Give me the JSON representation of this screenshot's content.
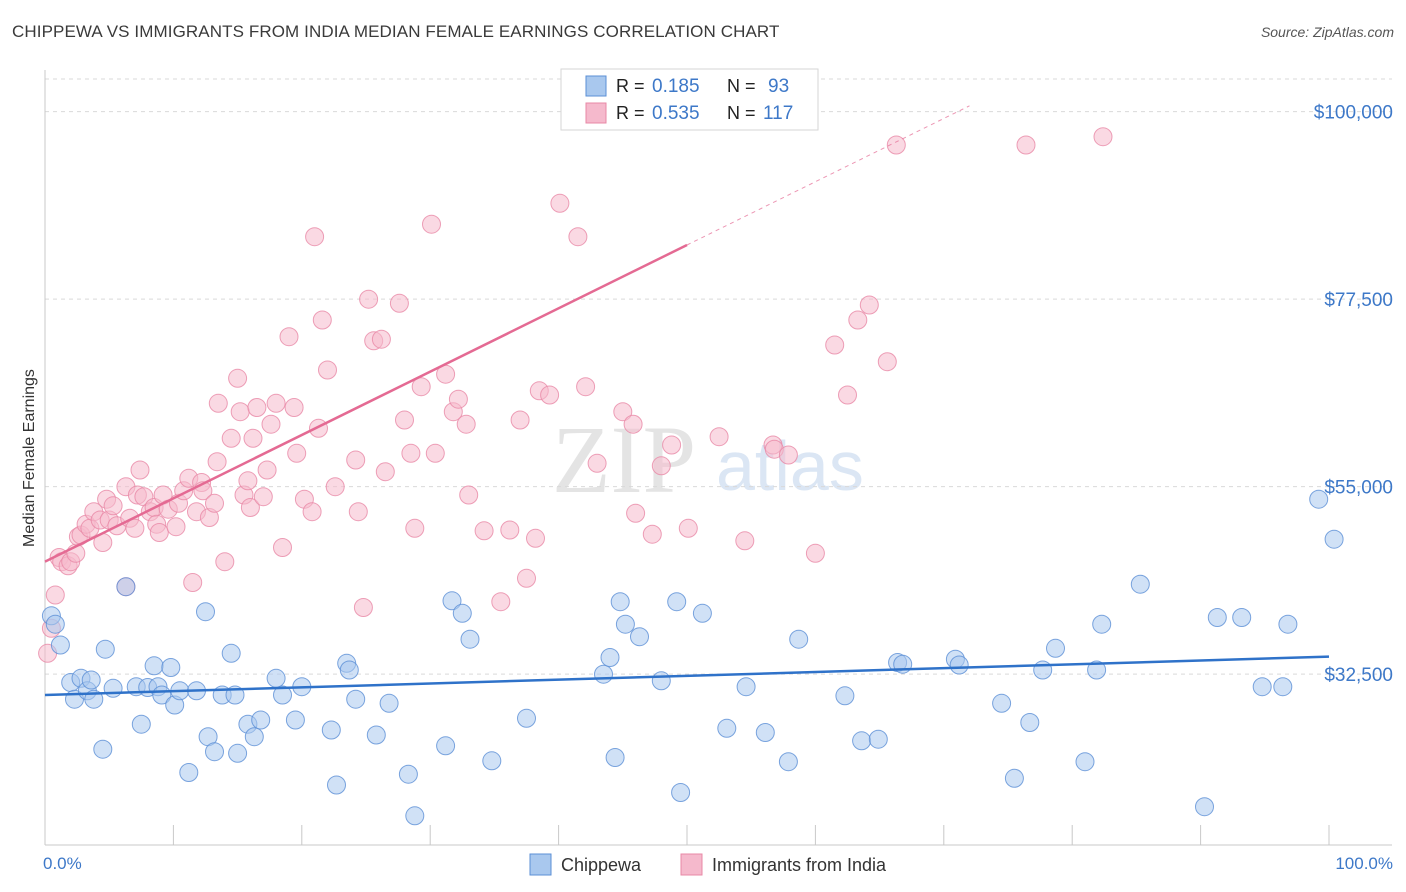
{
  "header": {
    "title": "CHIPPEWA VS IMMIGRANTS FROM INDIA MEDIAN FEMALE EARNINGS CORRELATION CHART",
    "source": "Source: ZipAtlas.com"
  },
  "watermark": {
    "zip": "ZIP",
    "atlas": "atlas"
  },
  "colors": {
    "blue_fill": "#a9c8ee",
    "blue_stroke": "#5b8fd6",
    "blue_line": "#2f72c9",
    "pink_fill": "#f5b9cc",
    "pink_stroke": "#e888a6",
    "pink_line": "#e46a93",
    "axis_label": "#3d78c8",
    "grid": "#d9d9d9"
  },
  "chart_data": {
    "type": "scatter",
    "title": "CHIPPEWA VS IMMIGRANTS FROM INDIA MEDIAN FEMALE EARNINGS CORRELATION CHART",
    "xlabel": "",
    "ylabel": "Median Female Earnings",
    "xlim": [
      0,
      100
    ],
    "ylim": [
      12000,
      105000
    ],
    "x_tick_labels": [
      "0.0%",
      "100.0%"
    ],
    "y_ticks": [
      {
        "value": 32500,
        "label": "$32,500"
      },
      {
        "value": 55000,
        "label": "$55,000"
      },
      {
        "value": 77500,
        "label": "$77,500"
      },
      {
        "value": 100000,
        "label": "$100,000"
      }
    ],
    "legend": [
      {
        "name": "Chippewa",
        "r_label": "R =",
        "r": "0.185",
        "n_label": "N =",
        "n": "93"
      },
      {
        "name": "Immigrants from India",
        "r_label": "R =",
        "r": "0.535",
        "n_label": "N =",
        "n": "117"
      }
    ],
    "series": [
      {
        "name": "Chippewa",
        "trend": {
          "x0": 0,
          "y0": 30000,
          "x1": 100,
          "y1": 34600
        },
        "points": [
          [
            0.5,
            39500
          ],
          [
            0.8,
            38500
          ],
          [
            1.2,
            36000
          ],
          [
            2,
            31500
          ],
          [
            2.3,
            29500
          ],
          [
            2.8,
            32000
          ],
          [
            3.3,
            30500
          ],
          [
            3.6,
            31800
          ],
          [
            3.8,
            29500
          ],
          [
            4.5,
            23500
          ],
          [
            4.7,
            35500
          ],
          [
            5.3,
            30800
          ],
          [
            6.3,
            43000
          ],
          [
            7.1,
            31000
          ],
          [
            7.5,
            26500
          ],
          [
            8,
            30900
          ],
          [
            8.5,
            33500
          ],
          [
            8.8,
            31000
          ],
          [
            9.1,
            30000
          ],
          [
            9.8,
            33300
          ],
          [
            10.1,
            28800
          ],
          [
            10.5,
            30500
          ],
          [
            11.2,
            20700
          ],
          [
            11.8,
            30500
          ],
          [
            12.5,
            40000
          ],
          [
            12.7,
            25000
          ],
          [
            13.2,
            23200
          ],
          [
            13.8,
            30000
          ],
          [
            14.5,
            35000
          ],
          [
            14.8,
            30000
          ],
          [
            15,
            23000
          ],
          [
            15.8,
            26500
          ],
          [
            16.3,
            25000
          ],
          [
            16.8,
            27000
          ],
          [
            18,
            32000
          ],
          [
            18.5,
            30000
          ],
          [
            19.5,
            27000
          ],
          [
            20,
            31000
          ],
          [
            22.3,
            25800
          ],
          [
            22.7,
            19200
          ],
          [
            23.5,
            33800
          ],
          [
            23.7,
            33000
          ],
          [
            24.2,
            29500
          ],
          [
            25.8,
            25200
          ],
          [
            26.8,
            29000
          ],
          [
            28.3,
            20500
          ],
          [
            28.8,
            15500
          ],
          [
            31.2,
            23900
          ],
          [
            31.7,
            41300
          ],
          [
            32.5,
            39800
          ],
          [
            33.1,
            36700
          ],
          [
            34.8,
            22100
          ],
          [
            37.5,
            27200
          ],
          [
            43.5,
            32500
          ],
          [
            44,
            34500
          ],
          [
            44.4,
            22500
          ],
          [
            44.8,
            41200
          ],
          [
            45.2,
            38500
          ],
          [
            46.3,
            37000
          ],
          [
            48,
            31700
          ],
          [
            49.2,
            41200
          ],
          [
            49.5,
            18300
          ],
          [
            51.2,
            39800
          ],
          [
            53.1,
            26000
          ],
          [
            54.6,
            31000
          ],
          [
            56.1,
            25500
          ],
          [
            57.9,
            22000
          ],
          [
            58.7,
            36700
          ],
          [
            62.3,
            29900
          ],
          [
            63.6,
            24500
          ],
          [
            64.9,
            24700
          ],
          [
            66.4,
            33900
          ],
          [
            66.8,
            33700
          ],
          [
            70.9,
            34300
          ],
          [
            71.2,
            33600
          ],
          [
            74.5,
            29000
          ],
          [
            75.5,
            20000
          ],
          [
            76.7,
            26700
          ],
          [
            77.7,
            33000
          ],
          [
            78.7,
            35600
          ],
          [
            81,
            22000
          ],
          [
            81.9,
            33000
          ],
          [
            82.3,
            38500
          ],
          [
            85.3,
            43300
          ],
          [
            90.3,
            16600
          ],
          [
            91.3,
            39300
          ],
          [
            93.2,
            39300
          ],
          [
            94.8,
            31000
          ],
          [
            96.4,
            31000
          ],
          [
            96.8,
            38500
          ],
          [
            99.2,
            53500
          ],
          [
            100.4,
            48700
          ]
        ]
      },
      {
        "name": "Immigrants from India",
        "trend": {
          "x0": 0,
          "y0": 46000,
          "x1": 50,
          "y1": 84000,
          "x_dash_end": 72,
          "y_dash_end": 100700
        },
        "points": [
          [
            0.2,
            35000
          ],
          [
            0.5,
            38000
          ],
          [
            0.8,
            42000
          ],
          [
            1.1,
            46500
          ],
          [
            1.3,
            46000
          ],
          [
            1.8,
            45500
          ],
          [
            2,
            46000
          ],
          [
            2.4,
            47000
          ],
          [
            2.6,
            49000
          ],
          [
            2.8,
            49200
          ],
          [
            3.2,
            50500
          ],
          [
            3.5,
            50000
          ],
          [
            3.8,
            52000
          ],
          [
            4.3,
            51000
          ],
          [
            4.5,
            48300
          ],
          [
            4.8,
            53500
          ],
          [
            5,
            51000
          ],
          [
            5.3,
            52700
          ],
          [
            5.6,
            50300
          ],
          [
            6.3,
            43000
          ],
          [
            6.3,
            55000
          ],
          [
            6.6,
            51200
          ],
          [
            7,
            50000
          ],
          [
            7.2,
            54000
          ],
          [
            7.4,
            57000
          ],
          [
            7.7,
            53800
          ],
          [
            8.2,
            52000
          ],
          [
            8.5,
            52500
          ],
          [
            8.7,
            50500
          ],
          [
            8.9,
            49500
          ],
          [
            9.2,
            54000
          ],
          [
            9.6,
            52300
          ],
          [
            10.2,
            50200
          ],
          [
            10.4,
            53000
          ],
          [
            10.8,
            54500
          ],
          [
            11.2,
            56000
          ],
          [
            11.5,
            43500
          ],
          [
            11.8,
            52000
          ],
          [
            12.2,
            55500
          ],
          [
            12.3,
            54500
          ],
          [
            12.8,
            51300
          ],
          [
            13.2,
            53000
          ],
          [
            13.4,
            58000
          ],
          [
            13.5,
            65000
          ],
          [
            14,
            46000
          ],
          [
            14.5,
            60800
          ],
          [
            15,
            68000
          ],
          [
            15.2,
            64000
          ],
          [
            15.5,
            54000
          ],
          [
            15.8,
            55700
          ],
          [
            16,
            52500
          ],
          [
            16.2,
            60800
          ],
          [
            16.5,
            64500
          ],
          [
            17,
            53800
          ],
          [
            17.3,
            57000
          ],
          [
            17.6,
            62500
          ],
          [
            18,
            65000
          ],
          [
            18.5,
            47700
          ],
          [
            19,
            73000
          ],
          [
            19.4,
            64500
          ],
          [
            19.6,
            59000
          ],
          [
            20.2,
            53500
          ],
          [
            20.8,
            52000
          ],
          [
            21,
            85000
          ],
          [
            21.3,
            62000
          ],
          [
            21.6,
            75000
          ],
          [
            22,
            69000
          ],
          [
            22.6,
            55000
          ],
          [
            24.2,
            58200
          ],
          [
            24.4,
            52000
          ],
          [
            24.8,
            40500
          ],
          [
            25.2,
            77500
          ],
          [
            25.6,
            72500
          ],
          [
            26.2,
            72700
          ],
          [
            26.5,
            56800
          ],
          [
            27.6,
            77000
          ],
          [
            28,
            63000
          ],
          [
            28.5,
            59000
          ],
          [
            28.8,
            50000
          ],
          [
            29.3,
            67000
          ],
          [
            30.1,
            86500
          ],
          [
            30.4,
            59000
          ],
          [
            31.2,
            68500
          ],
          [
            31.8,
            64000
          ],
          [
            32.2,
            65500
          ],
          [
            32.8,
            62500
          ],
          [
            33,
            54000
          ],
          [
            34.2,
            49700
          ],
          [
            35.5,
            41200
          ],
          [
            36.2,
            49800
          ],
          [
            37,
            63000
          ],
          [
            37.5,
            44000
          ],
          [
            38.2,
            48800
          ],
          [
            38.5,
            66500
          ],
          [
            39.3,
            66000
          ],
          [
            40.1,
            89000
          ],
          [
            41.5,
            85000
          ],
          [
            42.1,
            67000
          ],
          [
            43,
            57800
          ],
          [
            45,
            64000
          ],
          [
            45.8,
            62500
          ],
          [
            46,
            51800
          ],
          [
            47.3,
            49300
          ],
          [
            48,
            57500
          ],
          [
            48.8,
            60000
          ],
          [
            50.1,
            50000
          ],
          [
            52.5,
            61000
          ],
          [
            54.5,
            48500
          ],
          [
            56.7,
            60000
          ],
          [
            56.8,
            59500
          ],
          [
            57.9,
            58800
          ],
          [
            60,
            47000
          ],
          [
            61.5,
            72000
          ],
          [
            62.5,
            66000
          ],
          [
            63.3,
            75000
          ],
          [
            64.2,
            76800
          ],
          [
            65.6,
            70000
          ],
          [
            66.3,
            96000
          ],
          [
            76.4,
            96000
          ],
          [
            82.4,
            97000
          ]
        ]
      }
    ]
  }
}
